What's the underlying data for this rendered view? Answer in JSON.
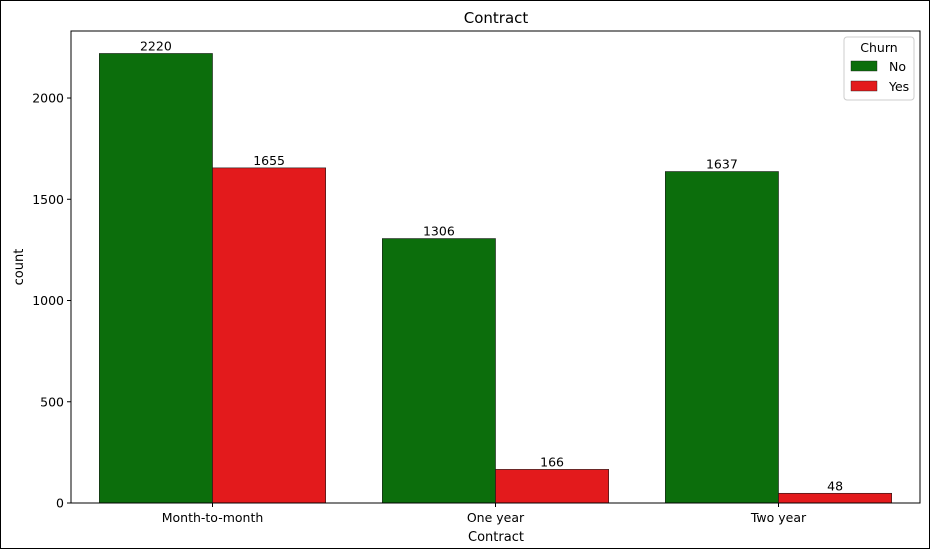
{
  "chart_data": {
    "type": "bar",
    "title": "Contract",
    "xlabel": "Contract",
    "ylabel": "count",
    "categories": [
      "Month-to-month",
      "One year",
      "Two year"
    ],
    "series": [
      {
        "name": "No",
        "values": [
          2220,
          1306,
          1637
        ],
        "color": "#0c6e0c"
      },
      {
        "name": "Yes",
        "values": [
          1655,
          166,
          48
        ],
        "color": "#e31a1c"
      }
    ],
    "ylim": [
      0,
      2331
    ],
    "yticks": [
      0,
      500,
      1000,
      1500,
      2000
    ],
    "grid": false,
    "legend": {
      "title": "Churn",
      "placement": "top-right"
    }
  }
}
